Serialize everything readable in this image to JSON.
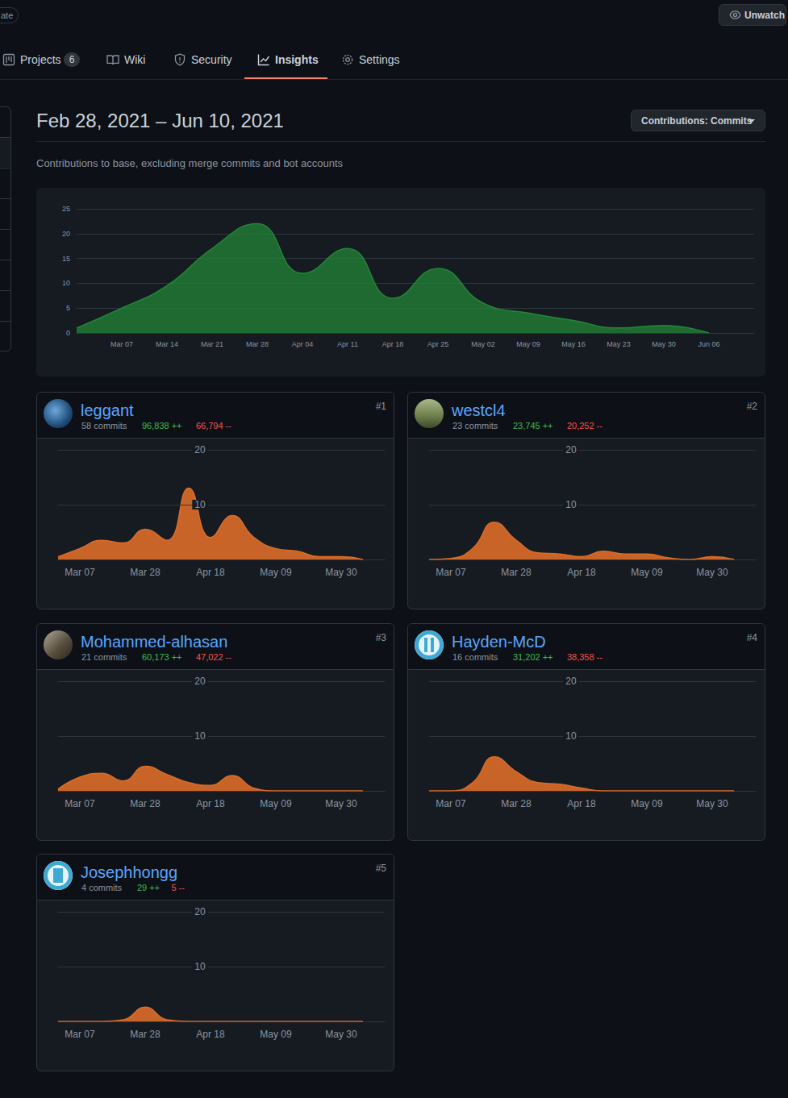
{
  "header": {
    "badge": "ate",
    "watch_button": "Unwatch",
    "tabs": [
      {
        "label": "Projects",
        "count": 6
      },
      {
        "label": "Wiki"
      },
      {
        "label": "Security"
      },
      {
        "label": "Insights",
        "active": true
      },
      {
        "label": "Settings"
      }
    ]
  },
  "period": "Feb 28, 2021 – Jun 10, 2021",
  "dropdown": "Contributions: Commits",
  "description": "Contributions to base, excluding merge commits and bot accounts",
  "chart_data": {
    "type": "area",
    "color": "#238636",
    "categories": [
      null,
      "Mar 07",
      "Mar 14",
      "Mar 21",
      "Mar 28",
      "Apr 04",
      "Apr 11",
      "Apr 18",
      "Apr 25",
      "May 02",
      "May 09",
      "May 16",
      "May 23",
      "May 30",
      "Jun 06",
      null
    ],
    "values": [
      1,
      5,
      9.5,
      17,
      22,
      12,
      17,
      7,
      13,
      6,
      4,
      2.5,
      1,
      1.5,
      0,
      null
    ],
    "ylim": [
      0,
      25
    ],
    "yticks": [
      0,
      5,
      10,
      15,
      20,
      25
    ],
    "grid": true
  },
  "contributors": [
    {
      "rank": "#1",
      "name": "leggant",
      "commits": "58 commits",
      "additions": "96,838 ++",
      "deletions": "66,794 --",
      "chart_data": {
        "type": "area",
        "color": "#db6d28",
        "categories": [
          null,
          "Mar 07",
          null,
          null,
          "Mar 28",
          null,
          null,
          "Apr 18",
          null,
          null,
          "May 09",
          null,
          null,
          "May 30",
          null,
          null
        ],
        "values": [
          0.5,
          2,
          3.5,
          3,
          5.5,
          3.5,
          13,
          4,
          8,
          4,
          2,
          1.5,
          0.5,
          0.5,
          0,
          null
        ],
        "ylim": [
          0,
          20
        ],
        "yticks": [
          10,
          20
        ],
        "grid": true
      }
    },
    {
      "rank": "#2",
      "name": "westcl4",
      "commits": "23 commits",
      "additions": "23,745 ++",
      "deletions": "20,252 --",
      "chart_data": {
        "type": "area",
        "color": "#db6d28",
        "categories": [
          null,
          "Mar 07",
          null,
          null,
          "Mar 28",
          null,
          null,
          "Apr 18",
          null,
          null,
          "May 09",
          null,
          null,
          "May 30",
          null,
          null
        ],
        "values": [
          0,
          0.2,
          2,
          6.8,
          3.5,
          1.2,
          1,
          0.5,
          1.5,
          1,
          1,
          0.3,
          0,
          0.5,
          0,
          null
        ],
        "ylim": [
          0,
          20
        ],
        "yticks": [
          10,
          20
        ],
        "grid": true
      }
    },
    {
      "rank": "#3",
      "name": "Mohammed-alhasan",
      "commits": "21 commits",
      "additions": "60,173 ++",
      "deletions": "47,022 --",
      "chart_data": {
        "type": "area",
        "color": "#db6d28",
        "categories": [
          null,
          "Mar 07",
          null,
          null,
          "Mar 28",
          null,
          null,
          "Apr 18",
          null,
          null,
          "May 09",
          null,
          null,
          "May 30",
          null,
          null
        ],
        "values": [
          0.3,
          2.5,
          3.2,
          1.8,
          4.5,
          3,
          1.5,
          1,
          2.8,
          0.5,
          0,
          0,
          0,
          0,
          0,
          null
        ],
        "ylim": [
          0,
          20
        ],
        "yticks": [
          10,
          20
        ],
        "grid": true
      }
    },
    {
      "rank": "#4",
      "name": "Hayden-McD",
      "commits": "16 commits",
      "additions": "31,202 ++",
      "deletions": "38,358 --",
      "chart_data": {
        "type": "area",
        "color": "#db6d28",
        "categories": [
          null,
          "Mar 07",
          null,
          null,
          "Mar 28",
          null,
          null,
          "Apr 18",
          null,
          null,
          "May 09",
          null,
          null,
          "May 30",
          null,
          null
        ],
        "values": [
          0,
          0,
          1.5,
          6.2,
          3.5,
          1.5,
          1.2,
          0.5,
          0,
          0,
          0,
          0,
          0,
          0,
          0,
          null
        ],
        "ylim": [
          0,
          20
        ],
        "yticks": [
          10,
          20
        ],
        "grid": true
      }
    },
    {
      "rank": "#5",
      "name": "Josephhongg",
      "commits": "4 commits",
      "additions": "29 ++",
      "deletions": "5 --",
      "chart_data": {
        "type": "area",
        "color": "#db6d28",
        "categories": [
          null,
          "Mar 07",
          null,
          null,
          "Mar 28",
          null,
          null,
          "Apr 18",
          null,
          null,
          "May 09",
          null,
          null,
          "May 30",
          null,
          null
        ],
        "values": [
          0,
          0,
          0,
          0.3,
          2.6,
          0.3,
          0,
          0,
          0,
          0,
          0,
          0,
          0,
          0,
          0,
          null
        ],
        "ylim": [
          0,
          20
        ],
        "yticks": [
          10,
          20
        ],
        "grid": true
      }
    }
  ]
}
